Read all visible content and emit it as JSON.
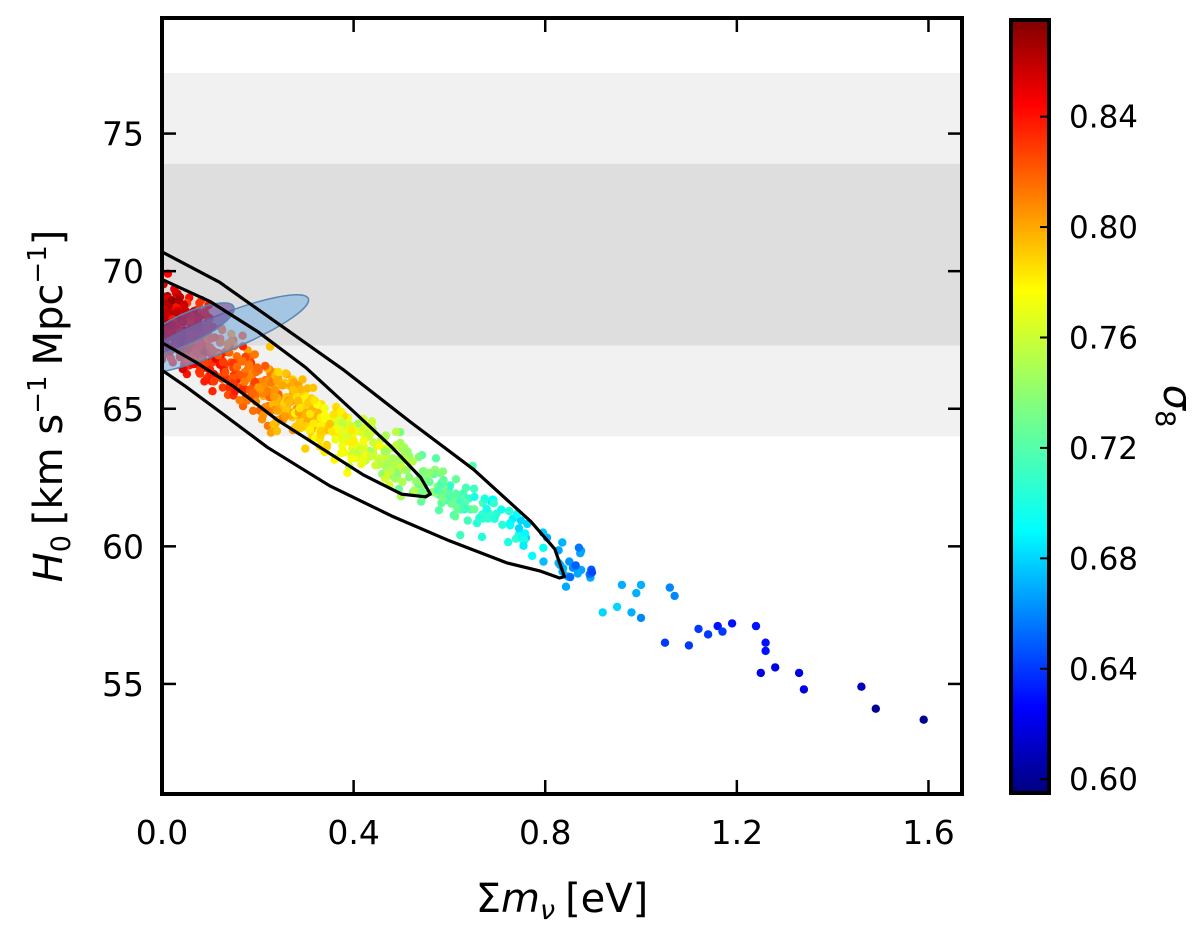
{
  "chart_data": {
    "type": "scatter",
    "xlabel": "Σmν [eV]",
    "xlabel_parts": {
      "sigma": "Σ",
      "m": "m",
      "nu": "ν",
      "unit": "[eV]"
    },
    "ylabel": "H0 [km s−1 Mpc−1]",
    "ylabel_parts": {
      "h": "H",
      "sub": "0",
      "km": "[km s",
      "exp": "−1",
      "mpc": "Mpc",
      "close": "]"
    },
    "xlim": [
      0.0,
      1.67
    ],
    "ylim": [
      51.0,
      79.2
    ],
    "xticks": [
      0.0,
      0.4,
      0.8,
      1.2,
      1.6
    ],
    "xtick_labels": [
      "0.0",
      "0.4",
      "0.8",
      "1.2",
      "1.6"
    ],
    "yticks": [
      55,
      60,
      65,
      70,
      75
    ],
    "ytick_labels": [
      "55",
      "60",
      "65",
      "70",
      "75"
    ],
    "grid": false,
    "bands": [
      {
        "name": "H0 2-sigma band",
        "y_range": [
          64.0,
          77.2
        ],
        "color": "#f1f1f1"
      },
      {
        "name": "H0 1-sigma band",
        "y_range": [
          67.3,
          73.9
        ],
        "color": "#dedede"
      }
    ],
    "colorbar": {
      "label": "σ8",
      "label_parts": {
        "sigma": "σ",
        "sub": "8"
      },
      "range": [
        0.595,
        0.875
      ],
      "ticks": [
        0.6,
        0.64,
        0.68,
        0.72,
        0.76,
        0.8,
        0.84
      ],
      "tick_labels": [
        "0.60",
        "0.64",
        "0.68",
        "0.72",
        "0.76",
        "0.80",
        "0.84"
      ],
      "colormap": "jet"
    },
    "contours": [
      {
        "name": "outer contour 95%",
        "color": "#000000",
        "x": [
          0.0,
          0.12,
          0.25,
          0.38,
          0.52,
          0.65,
          0.77,
          0.82,
          0.84,
          0.83,
          0.79,
          0.72,
          0.6,
          0.48,
          0.35,
          0.22,
          0.12,
          0.05,
          0.0
        ],
        "y": [
          70.7,
          69.6,
          68.0,
          66.4,
          64.5,
          62.8,
          60.9,
          59.9,
          58.9,
          58.85,
          59.1,
          59.4,
          60.2,
          61.1,
          62.2,
          63.6,
          64.9,
          65.8,
          66.4
        ]
      },
      {
        "name": "inner contour 68%",
        "color": "#000000",
        "x": [
          0.0,
          0.1,
          0.2,
          0.3,
          0.4,
          0.48,
          0.54,
          0.56,
          0.55,
          0.5,
          0.42,
          0.33,
          0.24,
          0.15,
          0.07,
          0.0
        ],
        "y": [
          69.7,
          68.9,
          67.8,
          66.5,
          64.9,
          63.6,
          62.5,
          61.9,
          61.8,
          61.9,
          62.6,
          63.6,
          64.6,
          65.8,
          66.7,
          67.4
        ]
      }
    ],
    "ellipses": [
      {
        "name": "blue ellipse",
        "center": [
          0.12,
          67.7
        ],
        "semi_axes": [
          0.2,
          1.9
        ],
        "angle_deg": -22,
        "color": "#7fb6e6",
        "opacity": 0.6
      },
      {
        "name": "purple ellipse",
        "center": [
          0.05,
          67.9
        ],
        "semi_axes": [
          0.11,
          1.55
        ],
        "angle_deg": -25,
        "color": "#6a4fa0",
        "opacity": 0.65
      }
    ],
    "scatter_cloud": {
      "name": "dense MCMC point cloud",
      "segments": [
        {
          "x_range": [
            0.0,
            0.1
          ],
          "y_center": 67.8,
          "y_spread": 3.0,
          "count": 260
        },
        {
          "x_range": [
            0.1,
            0.3
          ],
          "y_center": 65.9,
          "y_spread": 2.6,
          "count": 260
        },
        {
          "x_range": [
            0.3,
            0.5
          ],
          "y_center": 63.9,
          "y_spread": 2.3,
          "count": 200
        },
        {
          "x_range": [
            0.5,
            0.7
          ],
          "y_center": 62.0,
          "y_spread": 2.0,
          "count": 110
        },
        {
          "x_range": [
            0.7,
            0.9
          ],
          "y_center": 59.9,
          "y_spread": 1.6,
          "count": 45
        }
      ],
      "sigma8_fit": {
        "intercept": 0.858,
        "slope_per_eV": -0.225,
        "jitter": 0.015
      }
    },
    "sparse_points": [
      {
        "x": 0.96,
        "y": 58.6,
        "sigma8": 0.67
      },
      {
        "x": 0.98,
        "y": 57.6,
        "sigma8": 0.67
      },
      {
        "x": 0.99,
        "y": 58.3,
        "sigma8": 0.67
      },
      {
        "x": 1.0,
        "y": 57.4,
        "sigma8": 0.66
      },
      {
        "x": 1.0,
        "y": 58.6,
        "sigma8": 0.67
      },
      {
        "x": 1.06,
        "y": 58.5,
        "sigma8": 0.66
      },
      {
        "x": 1.07,
        "y": 58.2,
        "sigma8": 0.66
      },
      {
        "x": 0.92,
        "y": 57.6,
        "sigma8": 0.68
      },
      {
        "x": 0.95,
        "y": 57.8,
        "sigma8": 0.68
      },
      {
        "x": 1.05,
        "y": 56.5,
        "sigma8": 0.64
      },
      {
        "x": 1.1,
        "y": 56.4,
        "sigma8": 0.64
      },
      {
        "x": 1.12,
        "y": 57.0,
        "sigma8": 0.64
      },
      {
        "x": 1.14,
        "y": 56.8,
        "sigma8": 0.64
      },
      {
        "x": 1.16,
        "y": 57.1,
        "sigma8": 0.63
      },
      {
        "x": 1.17,
        "y": 56.9,
        "sigma8": 0.64
      },
      {
        "x": 1.19,
        "y": 57.2,
        "sigma8": 0.63
      },
      {
        "x": 1.24,
        "y": 57.1,
        "sigma8": 0.63
      },
      {
        "x": 1.26,
        "y": 56.5,
        "sigma8": 0.63
      },
      {
        "x": 1.26,
        "y": 56.2,
        "sigma8": 0.63
      },
      {
        "x": 1.25,
        "y": 55.4,
        "sigma8": 0.62
      },
      {
        "x": 1.28,
        "y": 55.6,
        "sigma8": 0.62
      },
      {
        "x": 1.33,
        "y": 55.4,
        "sigma8": 0.62
      },
      {
        "x": 1.34,
        "y": 54.8,
        "sigma8": 0.62
      },
      {
        "x": 1.46,
        "y": 54.9,
        "sigma8": 0.61
      },
      {
        "x": 1.49,
        "y": 54.1,
        "sigma8": 0.6
      },
      {
        "x": 1.59,
        "y": 53.7,
        "sigma8": 0.6
      }
    ]
  }
}
